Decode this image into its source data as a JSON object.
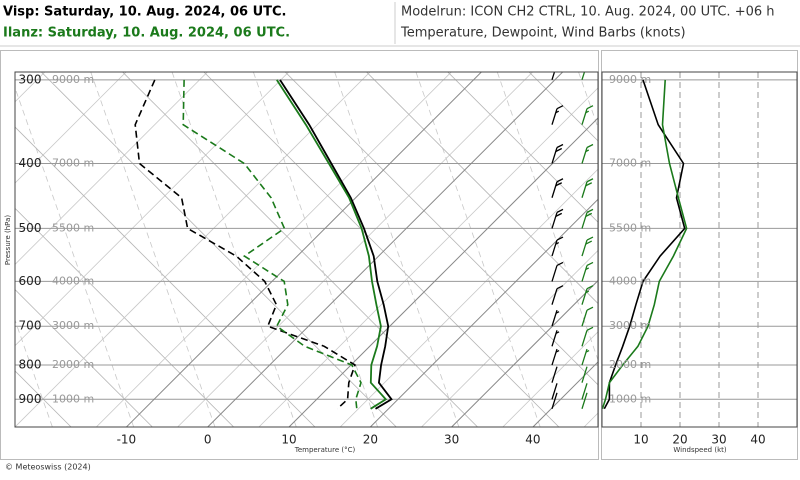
{
  "header": {
    "visp_title": "Visp: Saturday, 10. Aug. 2024, 06 UTC.",
    "ilanz_title": "Ilanz: Saturday, 10. Aug. 2024, 06 UTC.",
    "modelrun": "Modelrun: ICON CH2 CTRL, 10. Aug. 2024, 00 UTC. +06 h",
    "subtitle": "Temperature, Dewpoint, Wind Barbs (knots)"
  },
  "footer": "© Meteoswiss (2024)",
  "chart_data": [
    {
      "type": "skewt",
      "y": [
        300,
        350,
        400,
        450,
        500,
        550,
        600,
        650,
        700,
        750,
        800,
        850,
        900,
        930
      ],
      "series": [
        {
          "color": "#000000",
          "dashed": false,
          "values": [
            -33.8,
            -24.7,
            -17.2,
            -10.6,
            -5.2,
            -0.6,
            2.95,
            6.6,
            9.8,
            11.9,
            13.7,
            15.6,
            19.2,
            18.4
          ]
        },
        {
          "color": "#1b7a1b",
          "dashed": false,
          "values": [
            -34.2,
            -25.1,
            -17.5,
            -10.8,
            -5.5,
            -1.2,
            2.3,
            5.7,
            8.9,
            10.9,
            12.5,
            14.6,
            18.5,
            17.8
          ]
        },
        {
          "color": "#000000",
          "dashed": true,
          "values": [
            -49.2,
            -46.1,
            -40.8,
            -31.4,
            -26.9,
            -17.5,
            -10.9,
            -6.6,
            -5.0,
            4.4,
            10.5,
            11.9,
            13.8,
            13.7
          ]
        },
        {
          "color": "#1b7a1b",
          "dashed": true,
          "values": [
            -45.6,
            -40.2,
            -27.9,
            -20.4,
            -15.0,
            -16.5,
            -8.5,
            -5.2,
            -3.9,
            2.0,
            10.1,
            13.4,
            14.8,
            16.1
          ]
        }
      ],
      "ylim": [
        990,
        292
      ],
      "yticks": [
        300,
        400,
        500,
        600,
        700,
        800,
        900
      ],
      "height_labels": [
        "9000 m",
        "7000 m",
        "5500 m",
        "4000 m",
        "3000 m",
        "2000 m",
        "1000 m"
      ],
      "xlim": [
        -23.7,
        48
      ],
      "xticks": [
        -10,
        0,
        10,
        20,
        30,
        40
      ],
      "ylabel": "Pressure (hPa)",
      "xlabel": "Temperature (°C)"
    },
    {
      "type": "line",
      "y": [
        300,
        350,
        400,
        450,
        500,
        550,
        600,
        650,
        700,
        750,
        800,
        850,
        900,
        930
      ],
      "series": [
        {
          "color": "#000000",
          "values": [
            10.5,
            14.4,
            20.9,
            19.1,
            21.2,
            14.9,
            10.5,
            8.7,
            7.1,
            5.3,
            3.5,
            1.9,
            1.9,
            0.6
          ]
        },
        {
          "color": "#1b7a1b",
          "values": [
            16.2,
            15.5,
            17.3,
            19.6,
            21.7,
            18.3,
            14.7,
            13.4,
            11.8,
            9.2,
            5.3,
            1.9,
            0.9,
            0.1
          ]
        }
      ],
      "ylim": [
        990,
        292
      ],
      "yticks": [
        {
          "value": 300,
          "label": "9000 m"
        },
        {
          "value": 400,
          "label": "7000 m"
        },
        {
          "value": 500,
          "label": "5500 m"
        },
        {
          "value": 600,
          "label": "4000 m"
        },
        {
          "value": 700,
          "label": "3000 m"
        },
        {
          "value": 800,
          "label": "2000 m"
        },
        {
          "value": 900,
          "label": "1000 m"
        }
      ],
      "xlim": [
        0,
        50
      ],
      "xticks": [
        10,
        20,
        30,
        40
      ],
      "xlabel": "Windspeed (kt)"
    }
  ]
}
